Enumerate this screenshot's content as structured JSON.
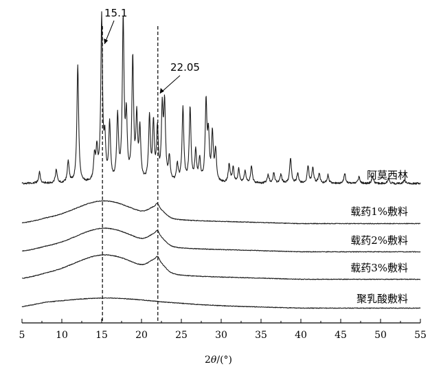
{
  "chart_data": {
    "type": "line",
    "title": "",
    "xlabel_prefix": "2",
    "xlabel_theta": "θ",
    "xlabel_suffix": "/(°)",
    "ylabel": "",
    "xlim": [
      5,
      55
    ],
    "xticks": [
      5,
      10,
      15,
      20,
      25,
      30,
      35,
      40,
      45,
      50,
      55
    ],
    "grid": false,
    "reference_lines": [
      {
        "x": 15.1,
        "label": "15.1"
      },
      {
        "x": 22.05,
        "label": "22.05"
      }
    ],
    "series": [
      {
        "name": "阿莫西林",
        "kind": "crystalline",
        "peaks": [
          [
            7.2,
            0.07
          ],
          [
            9.3,
            0.08
          ],
          [
            10.8,
            0.13
          ],
          [
            12.0,
            0.7
          ],
          [
            14.1,
            0.14
          ],
          [
            14.4,
            0.18
          ],
          [
            15.0,
            0.97
          ],
          [
            15.4,
            0.22
          ],
          [
            16.0,
            0.34
          ],
          [
            17.0,
            0.38
          ],
          [
            17.7,
            0.95
          ],
          [
            18.1,
            0.35
          ],
          [
            18.9,
            0.72
          ],
          [
            19.4,
            0.36
          ],
          [
            19.8,
            0.3
          ],
          [
            21.0,
            0.38
          ],
          [
            21.5,
            0.34
          ],
          [
            22.0,
            0.3
          ],
          [
            22.6,
            0.41
          ],
          [
            22.9,
            0.44
          ],
          [
            23.5,
            0.14
          ],
          [
            24.5,
            0.1
          ],
          [
            25.2,
            0.44
          ],
          [
            26.1,
            0.44
          ],
          [
            26.8,
            0.18
          ],
          [
            27.3,
            0.13
          ],
          [
            28.1,
            0.46
          ],
          [
            28.4,
            0.26
          ],
          [
            28.9,
            0.28
          ],
          [
            29.3,
            0.18
          ],
          [
            31.0,
            0.11
          ],
          [
            31.5,
            0.09
          ],
          [
            32.2,
            0.08
          ],
          [
            33.0,
            0.07
          ],
          [
            33.8,
            0.1
          ],
          [
            35.9,
            0.05
          ],
          [
            36.6,
            0.06
          ],
          [
            37.5,
            0.05
          ],
          [
            38.7,
            0.15
          ],
          [
            39.6,
            0.06
          ],
          [
            40.9,
            0.1
          ],
          [
            41.5,
            0.09
          ],
          [
            42.3,
            0.06
          ],
          [
            43.4,
            0.05
          ],
          [
            45.5,
            0.06
          ],
          [
            47.3,
            0.04
          ],
          [
            49.0,
            0.04
          ],
          [
            51.0,
            0.03
          ],
          [
            53.0,
            0.02
          ]
        ],
        "baseline": 0.02
      },
      {
        "name": "载药1%敷料",
        "kind": "amorphous",
        "broad_center": 15.3,
        "broad_height": 0.115,
        "broad_width": 3.6,
        "peak_22": 0.06,
        "tail_start": 0.0,
        "tail_end": 0.0
      },
      {
        "name": "载药2%敷料",
        "kind": "amorphous",
        "broad_center": 15.4,
        "broad_height": 0.12,
        "broad_width": 3.6,
        "peak_22": 0.065,
        "tail_start": 0.0,
        "tail_end": 0.0
      },
      {
        "name": "载药3%敷料",
        "kind": "amorphous",
        "broad_center": 15.4,
        "broad_height": 0.125,
        "broad_width": 3.8,
        "peak_22": 0.07,
        "tail_start": 0.0,
        "tail_end": 0.0
      },
      {
        "name": "聚乳酸敷料",
        "kind": "amorphous",
        "broad_center": 15.5,
        "broad_height": 0.04,
        "broad_width": 5.5,
        "peak_22": 0.0,
        "tail_start": 0.0,
        "tail_end": 0.0
      }
    ]
  }
}
